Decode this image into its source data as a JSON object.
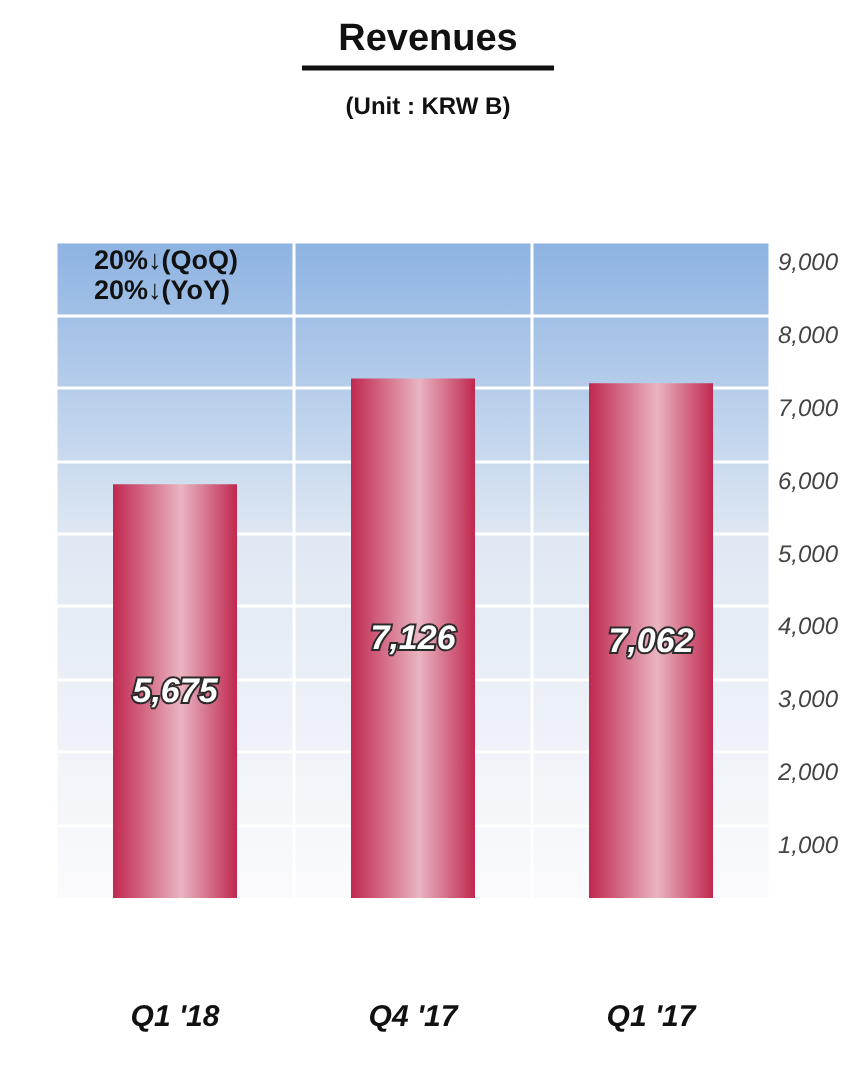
{
  "chart_data": {
    "type": "bar",
    "title": "Revenues",
    "subtitle": "(Unit : KRW B)",
    "categories": [
      "Q1 '18",
      "Q4 '17",
      "Q1 '17"
    ],
    "values": [
      5675,
      7126,
      7062
    ],
    "value_labels": [
      "5,675",
      "7,126",
      "7,062"
    ],
    "color": "#c0284f",
    "ylim": [
      0,
      9000
    ],
    "yticks": [
      {
        "value": 1000,
        "label": "1,000"
      },
      {
        "value": 2000,
        "label": "2,000"
      },
      {
        "value": 3000,
        "label": "3,000"
      },
      {
        "value": 4000,
        "label": "4,000"
      },
      {
        "value": 5000,
        "label": "5,000"
      },
      {
        "value": 6000,
        "label": "6,000"
      },
      {
        "value": 7000,
        "label": "7,000"
      },
      {
        "value": 8000,
        "label": "8,000"
      },
      {
        "value": 9000,
        "label": "9,000"
      }
    ],
    "grid": true,
    "annotations": [
      "20%↓(QoQ)",
      "20%↓(YoY)"
    ]
  }
}
